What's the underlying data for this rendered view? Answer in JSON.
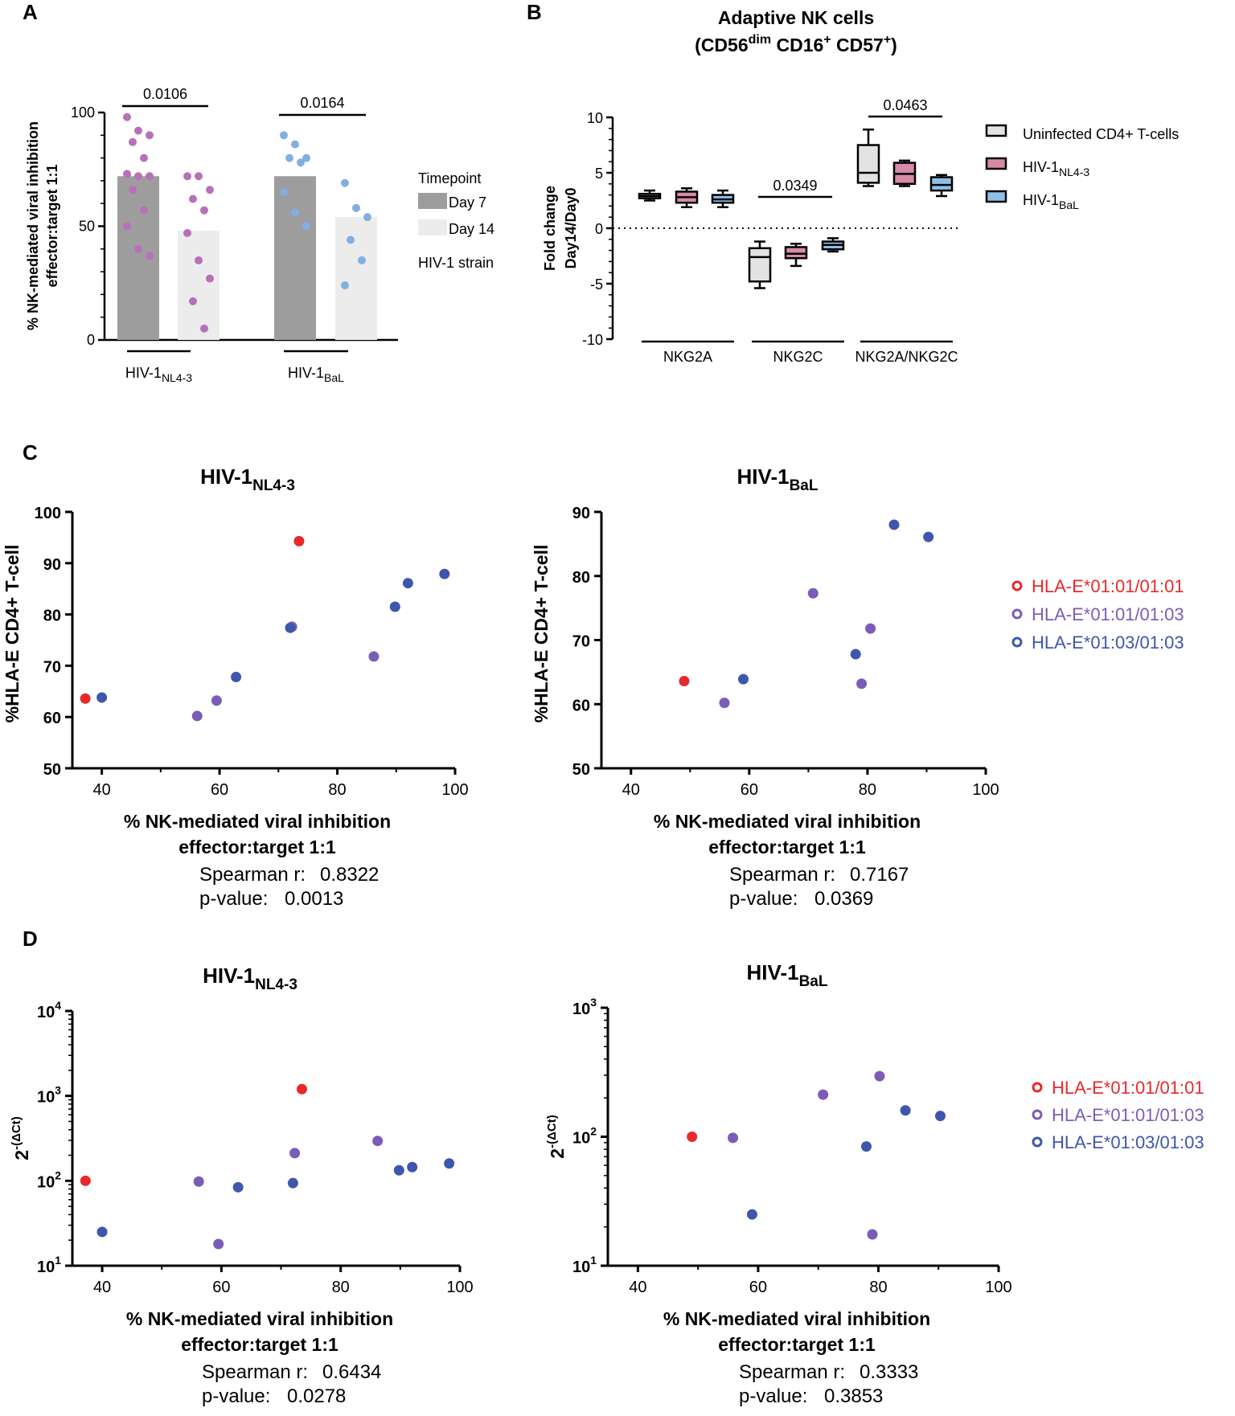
{
  "colors": {
    "nl43": "#b771b7",
    "bal": "#82afdf",
    "day7": "#9d9d9d",
    "day14": "#ececec",
    "uninfected": "#e3e3e3",
    "nl43_box": "#d78aa8",
    "bal_box": "#8fbfe7",
    "allele_0101": "#e8292b",
    "allele_0103": "#7b5cb8",
    "allele_0303": "#3f56ad",
    "strain_nl43_label": "#9b3d9b",
    "strain_bal_label": "#2e3d8a"
  },
  "panel_labels": {
    "a": "A",
    "b": "B",
    "c": "C",
    "d": "D"
  },
  "chart_data": [
    {
      "id": "A",
      "type": "bar",
      "ylabel_line1": "% NK-mediated viral inhibition",
      "ylabel_line2": "effector:target 1:1",
      "ylim": [
        0,
        100
      ],
      "yticks": [
        0,
        50,
        100
      ],
      "legend_title": "Timepoint",
      "legend_items": [
        "Day 7",
        "Day 14"
      ],
      "legend_note": "HIV-1 strain",
      "groups": [
        {
          "strain": "HIV-1",
          "strain_sub": "NL4-3",
          "p_value": "0.0106",
          "bars": [
            {
              "timepoint": "Day 7",
              "value": 72,
              "points": [
                98,
                92,
                90,
                87,
                80,
                73,
                72,
                72,
                66,
                57,
                50,
                40,
                37
              ]
            },
            {
              "timepoint": "Day 14",
              "value": 48,
              "points": [
                72,
                72,
                66,
                62,
                57,
                47,
                35,
                27,
                17,
                5
              ]
            }
          ]
        },
        {
          "strain": "HIV-1",
          "strain_sub": "BaL",
          "p_value": "0.0164",
          "bars": [
            {
              "timepoint": "Day 7",
              "value": 72,
              "points": [
                90,
                86,
                80,
                80,
                78,
                65,
                56,
                50
              ]
            },
            {
              "timepoint": "Day 14",
              "value": 54,
              "points": [
                69,
                58,
                54,
                44,
                35,
                24
              ]
            }
          ]
        }
      ]
    },
    {
      "id": "B",
      "type": "box",
      "title_line1": "Adaptive  NK cells",
      "title_line2_parts": [
        "(CD56",
        "dim",
        " CD16",
        "+",
        " CD57",
        "+",
        ")"
      ],
      "ylabel_line1": "Fold change",
      "ylabel_line2": "Day14/Day0",
      "ylim": [
        -10,
        10
      ],
      "yticks": [
        -10,
        -5,
        0,
        5,
        10
      ],
      "reference_line": 0,
      "categories": [
        "NKG2A",
        "NKG2C",
        "NKG2A/NKG2C"
      ],
      "series": [
        {
          "name": "Uninfected CD4+ T-cells",
          "name_sub": ""
        },
        {
          "name": "HIV-1",
          "name_sub": "NL4-3"
        },
        {
          "name": "HIV-1",
          "name_sub": "BaL"
        }
      ],
      "boxes": [
        [
          {
            "min": 2.5,
            "q1": 2.7,
            "median": 2.9,
            "q3": 3.1,
            "max": 3.4
          },
          {
            "min": 1.9,
            "q1": 2.3,
            "median": 2.8,
            "q3": 3.3,
            "max": 3.6
          },
          {
            "min": 1.9,
            "q1": 2.3,
            "median": 2.6,
            "q3": 3.0,
            "max": 3.4
          }
        ],
        [
          {
            "min": -5.4,
            "q1": -4.8,
            "median": -2.6,
            "q3": -1.8,
            "max": -1.2
          },
          {
            "min": -3.4,
            "q1": -2.7,
            "median": -2.3,
            "q3": -1.7,
            "max": -1.4
          },
          {
            "min": -2.1,
            "q1": -1.9,
            "median": -1.5,
            "q3": -1.2,
            "max": -0.9
          }
        ],
        [
          {
            "min": 3.8,
            "q1": 4.1,
            "median": 5.0,
            "q3": 7.5,
            "max": 8.9
          },
          {
            "min": 3.8,
            "q1": 4.0,
            "median": 4.9,
            "q3": 5.9,
            "max": 6.1
          },
          {
            "min": 2.9,
            "q1": 3.4,
            "median": 3.9,
            "q3": 4.6,
            "max": 4.8
          }
        ]
      ],
      "comparisons": [
        {
          "category": "NKG2C",
          "p_value": "0.0349"
        },
        {
          "category": "NKG2A/NKG2C",
          "p_value": "0.0463"
        }
      ]
    },
    {
      "id": "C-left",
      "type": "scatter",
      "title": "HIV-1",
      "title_sub": "NL4-3",
      "xlabel_line1": "% NK-mediated viral inhibition",
      "xlabel_line2": "effector:target 1:1",
      "ylabel": "%HLA-E CD4+ T-cell",
      "xlim": [
        35,
        100
      ],
      "xticks": [
        40,
        60,
        80,
        100
      ],
      "ylim": [
        50,
        100
      ],
      "yticks": [
        50,
        60,
        70,
        80,
        90,
        100
      ],
      "stat_r_label": "Spearman r:",
      "stat_r": "0.8322",
      "stat_p_label": "p-value:",
      "stat_p": "0.0013",
      "points": [
        {
          "x": 37.2,
          "y": 63.6,
          "allele": "0101"
        },
        {
          "x": 73.5,
          "y": 94.3,
          "allele": "0101"
        },
        {
          "x": 56.2,
          "y": 60.2,
          "allele": "0103"
        },
        {
          "x": 59.5,
          "y": 63.2,
          "allele": "0103"
        },
        {
          "x": 72.3,
          "y": 77.6,
          "allele": "0103"
        },
        {
          "x": 86.2,
          "y": 71.8,
          "allele": "0103"
        },
        {
          "x": 40.0,
          "y": 63.8,
          "allele": "0303"
        },
        {
          "x": 62.8,
          "y": 67.8,
          "allele": "0303"
        },
        {
          "x": 72.0,
          "y": 77.4,
          "allele": "0303"
        },
        {
          "x": 89.8,
          "y": 81.5,
          "allele": "0303"
        },
        {
          "x": 92.0,
          "y": 86.1,
          "allele": "0303"
        },
        {
          "x": 98.2,
          "y": 87.9,
          "allele": "0303"
        }
      ]
    },
    {
      "id": "C-right",
      "type": "scatter",
      "title": "HIV-1",
      "title_sub": "BaL",
      "xlabel_line1": "% NK-mediated viral inhibition",
      "xlabel_line2": "effector:target 1:1",
      "ylabel": "%HLA-E CD4+ T-cell",
      "xlim": [
        35,
        100
      ],
      "xticks": [
        40,
        60,
        80,
        100
      ],
      "ylim": [
        50,
        90
      ],
      "yticks": [
        50,
        60,
        70,
        80,
        90
      ],
      "stat_r_label": "Spearman r:",
      "stat_r": "0.7167",
      "stat_p_label": "p-value:",
      "stat_p": "0.0369",
      "points": [
        {
          "x": 49.0,
          "y": 63.6,
          "allele": "0101"
        },
        {
          "x": 55.8,
          "y": 60.2,
          "allele": "0103"
        },
        {
          "x": 70.8,
          "y": 77.3,
          "allele": "0103"
        },
        {
          "x": 80.5,
          "y": 71.8,
          "allele": "0103"
        },
        {
          "x": 79.0,
          "y": 63.2,
          "allele": "0103"
        },
        {
          "x": 59.0,
          "y": 63.9,
          "allele": "0303"
        },
        {
          "x": 78.0,
          "y": 67.8,
          "allele": "0303"
        },
        {
          "x": 84.5,
          "y": 88.0,
          "allele": "0303"
        },
        {
          "x": 90.3,
          "y": 86.1,
          "allele": "0303"
        }
      ]
    },
    {
      "id": "D-left",
      "type": "scatter",
      "yscale": "log",
      "title": "HIV-1",
      "title_sub": "NL4-3",
      "xlabel_line1": "% NK-mediated viral inhibition",
      "xlabel_line2": "effector:target 1:1",
      "ylabel_base": "2",
      "ylabel_exp": "-(ΔCt)",
      "xlim": [
        35,
        100
      ],
      "xticks": [
        40,
        60,
        80,
        100
      ],
      "ylim_log10": [
        1,
        4
      ],
      "ytick_exponents": [
        1,
        2,
        3,
        4
      ],
      "ytick_base": "10",
      "stat_r_label": "Spearman r:",
      "stat_r": "0.6434",
      "stat_p_label": "p-value:",
      "stat_p": "0.0278",
      "points": [
        {
          "x": 37.2,
          "y": 100,
          "allele": "0101"
        },
        {
          "x": 73.5,
          "y": 1200,
          "allele": "0101"
        },
        {
          "x": 56.2,
          "y": 98,
          "allele": "0103"
        },
        {
          "x": 59.5,
          "y": 18,
          "allele": "0103"
        },
        {
          "x": 72.3,
          "y": 212,
          "allele": "0103"
        },
        {
          "x": 86.2,
          "y": 295,
          "allele": "0103"
        },
        {
          "x": 40.0,
          "y": 25,
          "allele": "0303"
        },
        {
          "x": 62.8,
          "y": 84,
          "allele": "0303"
        },
        {
          "x": 72.0,
          "y": 94,
          "allele": "0303"
        },
        {
          "x": 89.8,
          "y": 133,
          "allele": "0303"
        },
        {
          "x": 92.0,
          "y": 145,
          "allele": "0303"
        },
        {
          "x": 98.2,
          "y": 160,
          "allele": "0303"
        }
      ]
    },
    {
      "id": "D-right",
      "type": "scatter",
      "yscale": "log",
      "title": "HIV-1",
      "title_sub": "BaL",
      "xlabel_line1": "% NK-mediated viral inhibition",
      "xlabel_line2": "effector:target 1:1",
      "ylabel_base": "2",
      "ylabel_exp": "-(ΔCt)",
      "xlim": [
        35,
        100
      ],
      "xticks": [
        40,
        60,
        80,
        100
      ],
      "ylim_log10": [
        1,
        3
      ],
      "ytick_exponents": [
        1,
        2,
        3
      ],
      "ytick_base": "10",
      "stat_r_label": "Spearman r:",
      "stat_r": "0.3333",
      "stat_p_label": "p-value:",
      "stat_p": "0.3853",
      "points": [
        {
          "x": 49.0,
          "y": 100,
          "allele": "0101"
        },
        {
          "x": 55.8,
          "y": 98,
          "allele": "0103"
        },
        {
          "x": 70.8,
          "y": 212,
          "allele": "0103"
        },
        {
          "x": 80.2,
          "y": 295,
          "allele": "0103"
        },
        {
          "x": 79.0,
          "y": 17.5,
          "allele": "0103"
        },
        {
          "x": 59.0,
          "y": 25,
          "allele": "0303"
        },
        {
          "x": 78.0,
          "y": 84,
          "allele": "0303"
        },
        {
          "x": 84.5,
          "y": 160,
          "allele": "0303"
        },
        {
          "x": 90.3,
          "y": 145,
          "allele": "0303"
        }
      ]
    }
  ],
  "allele_legend": [
    {
      "key": "0101",
      "label": "HLA-E*01:01/01:01"
    },
    {
      "key": "0103",
      "label": "HLA-E*01:01/01:03"
    },
    {
      "key": "0303",
      "label": "HLA-E*01:03/01:03"
    }
  ]
}
